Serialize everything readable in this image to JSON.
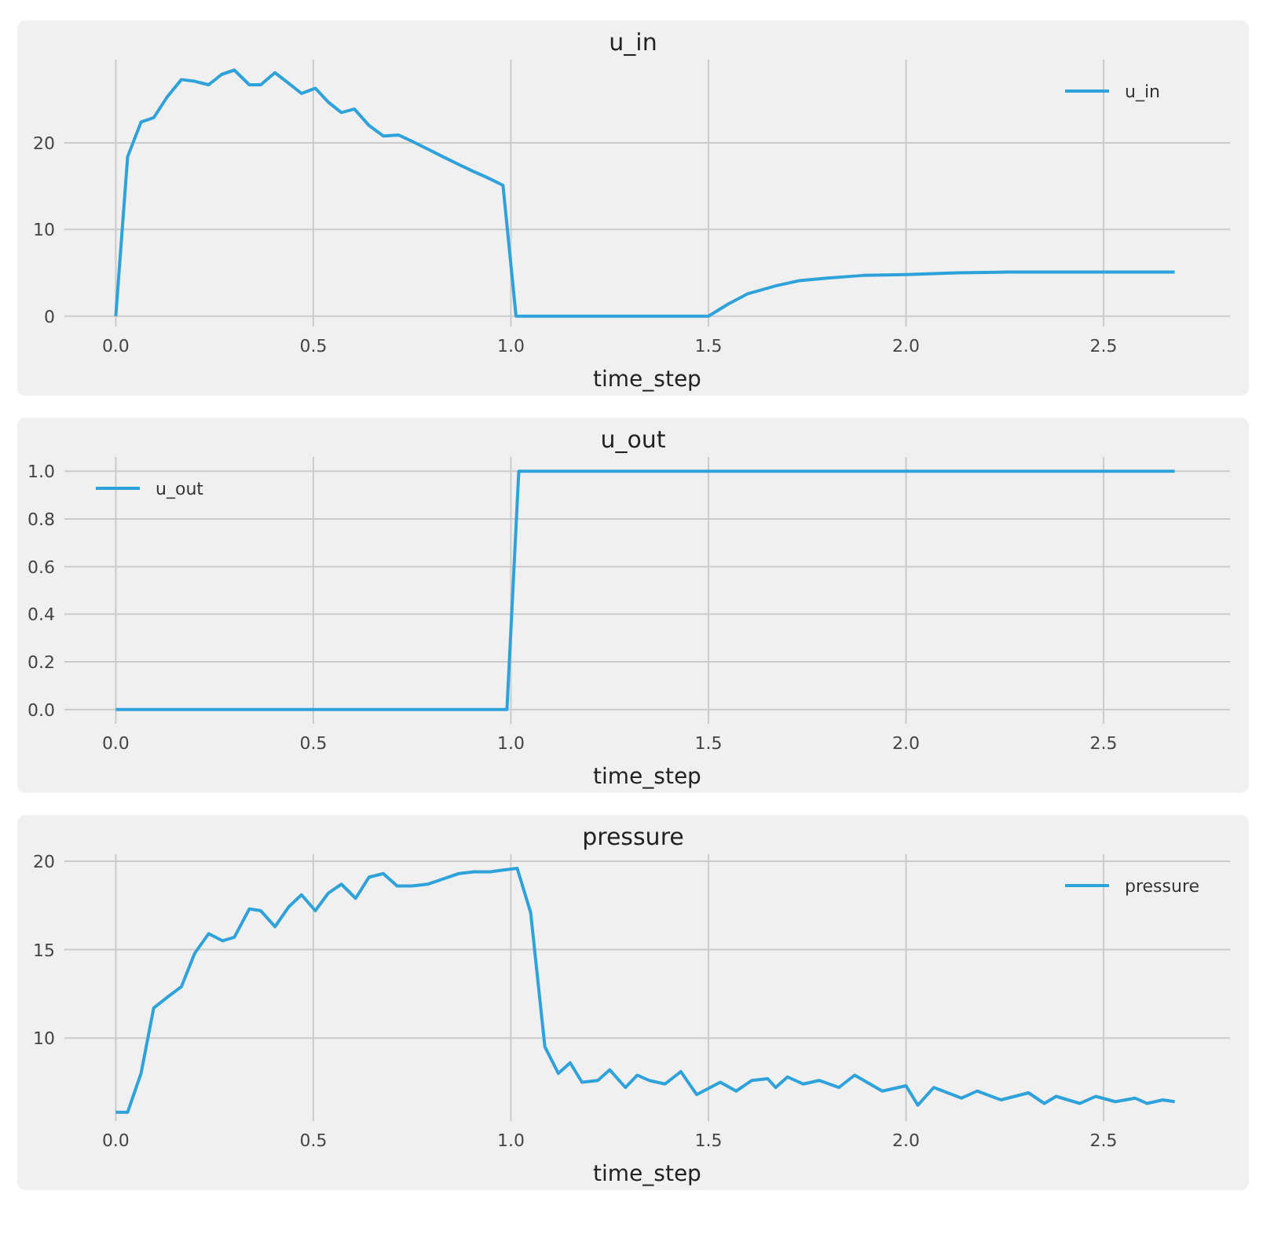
{
  "chart_data": [
    {
      "type": "line",
      "title": "u_in",
      "xlabel": "time_step",
      "legend": "top right",
      "grid": true,
      "xlim": [
        -0.13,
        2.82
      ],
      "ylim": [
        -1.2,
        29.6
      ],
      "xticks": [
        {
          "value": 0,
          "label": "0.0"
        },
        {
          "value": 0.5,
          "label": "0.5"
        },
        {
          "value": 1,
          "label": "1.0"
        },
        {
          "value": 1.5,
          "label": "1.5"
        },
        {
          "value": 2,
          "label": "2.0"
        },
        {
          "value": 2.5,
          "label": "2.5"
        }
      ],
      "yticks": [
        0,
        10,
        20
      ],
      "x": [
        0,
        0.03,
        0.064,
        0.096,
        0.13,
        0.166,
        0.2,
        0.235,
        0.268,
        0.3,
        0.338,
        0.367,
        0.403,
        0.437,
        0.47,
        0.505,
        0.538,
        0.571,
        0.604,
        0.641,
        0.677,
        0.716,
        0.749,
        0.789,
        0.828,
        0.868,
        0.905,
        0.94,
        0.98,
        1.013,
        1.5,
        1.55,
        1.6,
        1.67,
        1.73,
        1.8,
        1.89,
        2.0,
        2.13,
        2.26,
        2.5,
        2.68
      ],
      "series": [
        {
          "name": "u_in",
          "color": "#30a2da",
          "values": [
            0,
            18.4,
            22.4,
            22.9,
            25.3,
            27.3,
            27.1,
            26.7,
            27.9,
            28.4,
            26.7,
            26.7,
            28.1,
            26.9,
            25.7,
            26.3,
            24.7,
            23.5,
            23.9,
            22.0,
            20.8,
            20.9,
            20.2,
            19.3,
            18.4,
            17.5,
            16.7,
            16.0,
            15.1,
            0,
            0,
            1.4,
            2.6,
            3.5,
            4.1,
            4.4,
            4.7,
            4.8,
            5.0,
            5.1,
            5.1,
            5.1
          ]
        }
      ]
    },
    {
      "type": "line",
      "title": "u_out",
      "xlabel": "time_step",
      "legend": "top left",
      "grid": true,
      "xlim": [
        -0.13,
        2.82
      ],
      "ylim": [
        -0.06,
        1.06
      ],
      "xticks": [
        {
          "value": 0,
          "label": "0.0"
        },
        {
          "value": 0.5,
          "label": "0.5"
        },
        {
          "value": 1,
          "label": "1.0"
        },
        {
          "value": 1.5,
          "label": "1.5"
        },
        {
          "value": 2,
          "label": "2.0"
        },
        {
          "value": 2.5,
          "label": "2.5"
        }
      ],
      "yticks": [
        {
          "value": 0,
          "label": "0.0"
        },
        {
          "value": 0.2,
          "label": "0.2"
        },
        {
          "value": 0.4,
          "label": "0.4"
        },
        {
          "value": 0.6,
          "label": "0.6"
        },
        {
          "value": 0.8,
          "label": "0.8"
        },
        {
          "value": 1,
          "label": "1.0"
        }
      ],
      "x": [
        0,
        0.99,
        1.02,
        2.68
      ],
      "series": [
        {
          "name": "u_out",
          "color": "#30a2da",
          "values": [
            0,
            0,
            1,
            1
          ]
        }
      ]
    },
    {
      "type": "line",
      "title": "pressure",
      "xlabel": "time_step",
      "legend": "top right",
      "grid": true,
      "xlim": [
        -0.13,
        2.82
      ],
      "ylim": [
        5.3,
        20.4
      ],
      "xticks": [
        {
          "value": 0,
          "label": "0.0"
        },
        {
          "value": 0.5,
          "label": "0.5"
        },
        {
          "value": 1,
          "label": "1.0"
        },
        {
          "value": 1.5,
          "label": "1.5"
        },
        {
          "value": 2,
          "label": "2.0"
        },
        {
          "value": 2.5,
          "label": "2.5"
        }
      ],
      "yticks": [
        10,
        15,
        20
      ],
      "x": [
        0,
        0.03,
        0.064,
        0.096,
        0.13,
        0.166,
        0.2,
        0.235,
        0.27,
        0.3,
        0.338,
        0.367,
        0.403,
        0.437,
        0.47,
        0.505,
        0.538,
        0.571,
        0.607,
        0.641,
        0.677,
        0.712,
        0.749,
        0.789,
        0.828,
        0.868,
        0.905,
        0.947,
        0.98,
        1.016,
        1.05,
        1.086,
        1.12,
        1.15,
        1.18,
        1.22,
        1.25,
        1.29,
        1.32,
        1.35,
        1.39,
        1.43,
        1.47,
        1.53,
        1.57,
        1.61,
        1.65,
        1.67,
        1.7,
        1.74,
        1.78,
        1.83,
        1.87,
        1.94,
        2.0,
        2.03,
        2.07,
        2.14,
        2.18,
        2.24,
        2.31,
        2.35,
        2.38,
        2.44,
        2.48,
        2.53,
        2.58,
        2.61,
        2.65,
        2.68
      ],
      "series": [
        {
          "name": "pressure",
          "color": "#30a2da",
          "values": [
            5.8,
            5.8,
            8.0,
            11.7,
            12.3,
            12.9,
            14.8,
            15.9,
            15.5,
            15.7,
            17.3,
            17.2,
            16.3,
            17.4,
            18.1,
            17.2,
            18.2,
            18.7,
            17.9,
            19.1,
            19.3,
            18.6,
            18.6,
            18.7,
            19.0,
            19.3,
            19.4,
            19.4,
            19.5,
            19.6,
            17.1,
            9.5,
            8.0,
            8.6,
            7.5,
            7.6,
            8.2,
            7.2,
            7.9,
            7.6,
            7.4,
            8.1,
            6.8,
            7.5,
            7.0,
            7.6,
            7.7,
            7.2,
            7.8,
            7.4,
            7.6,
            7.2,
            7.9,
            7.0,
            7.3,
            6.2,
            7.2,
            6.6,
            7.0,
            6.5,
            6.9,
            6.3,
            6.7,
            6.3,
            6.7,
            6.4,
            6.6,
            6.3,
            6.5,
            6.4
          ]
        }
      ]
    }
  ]
}
